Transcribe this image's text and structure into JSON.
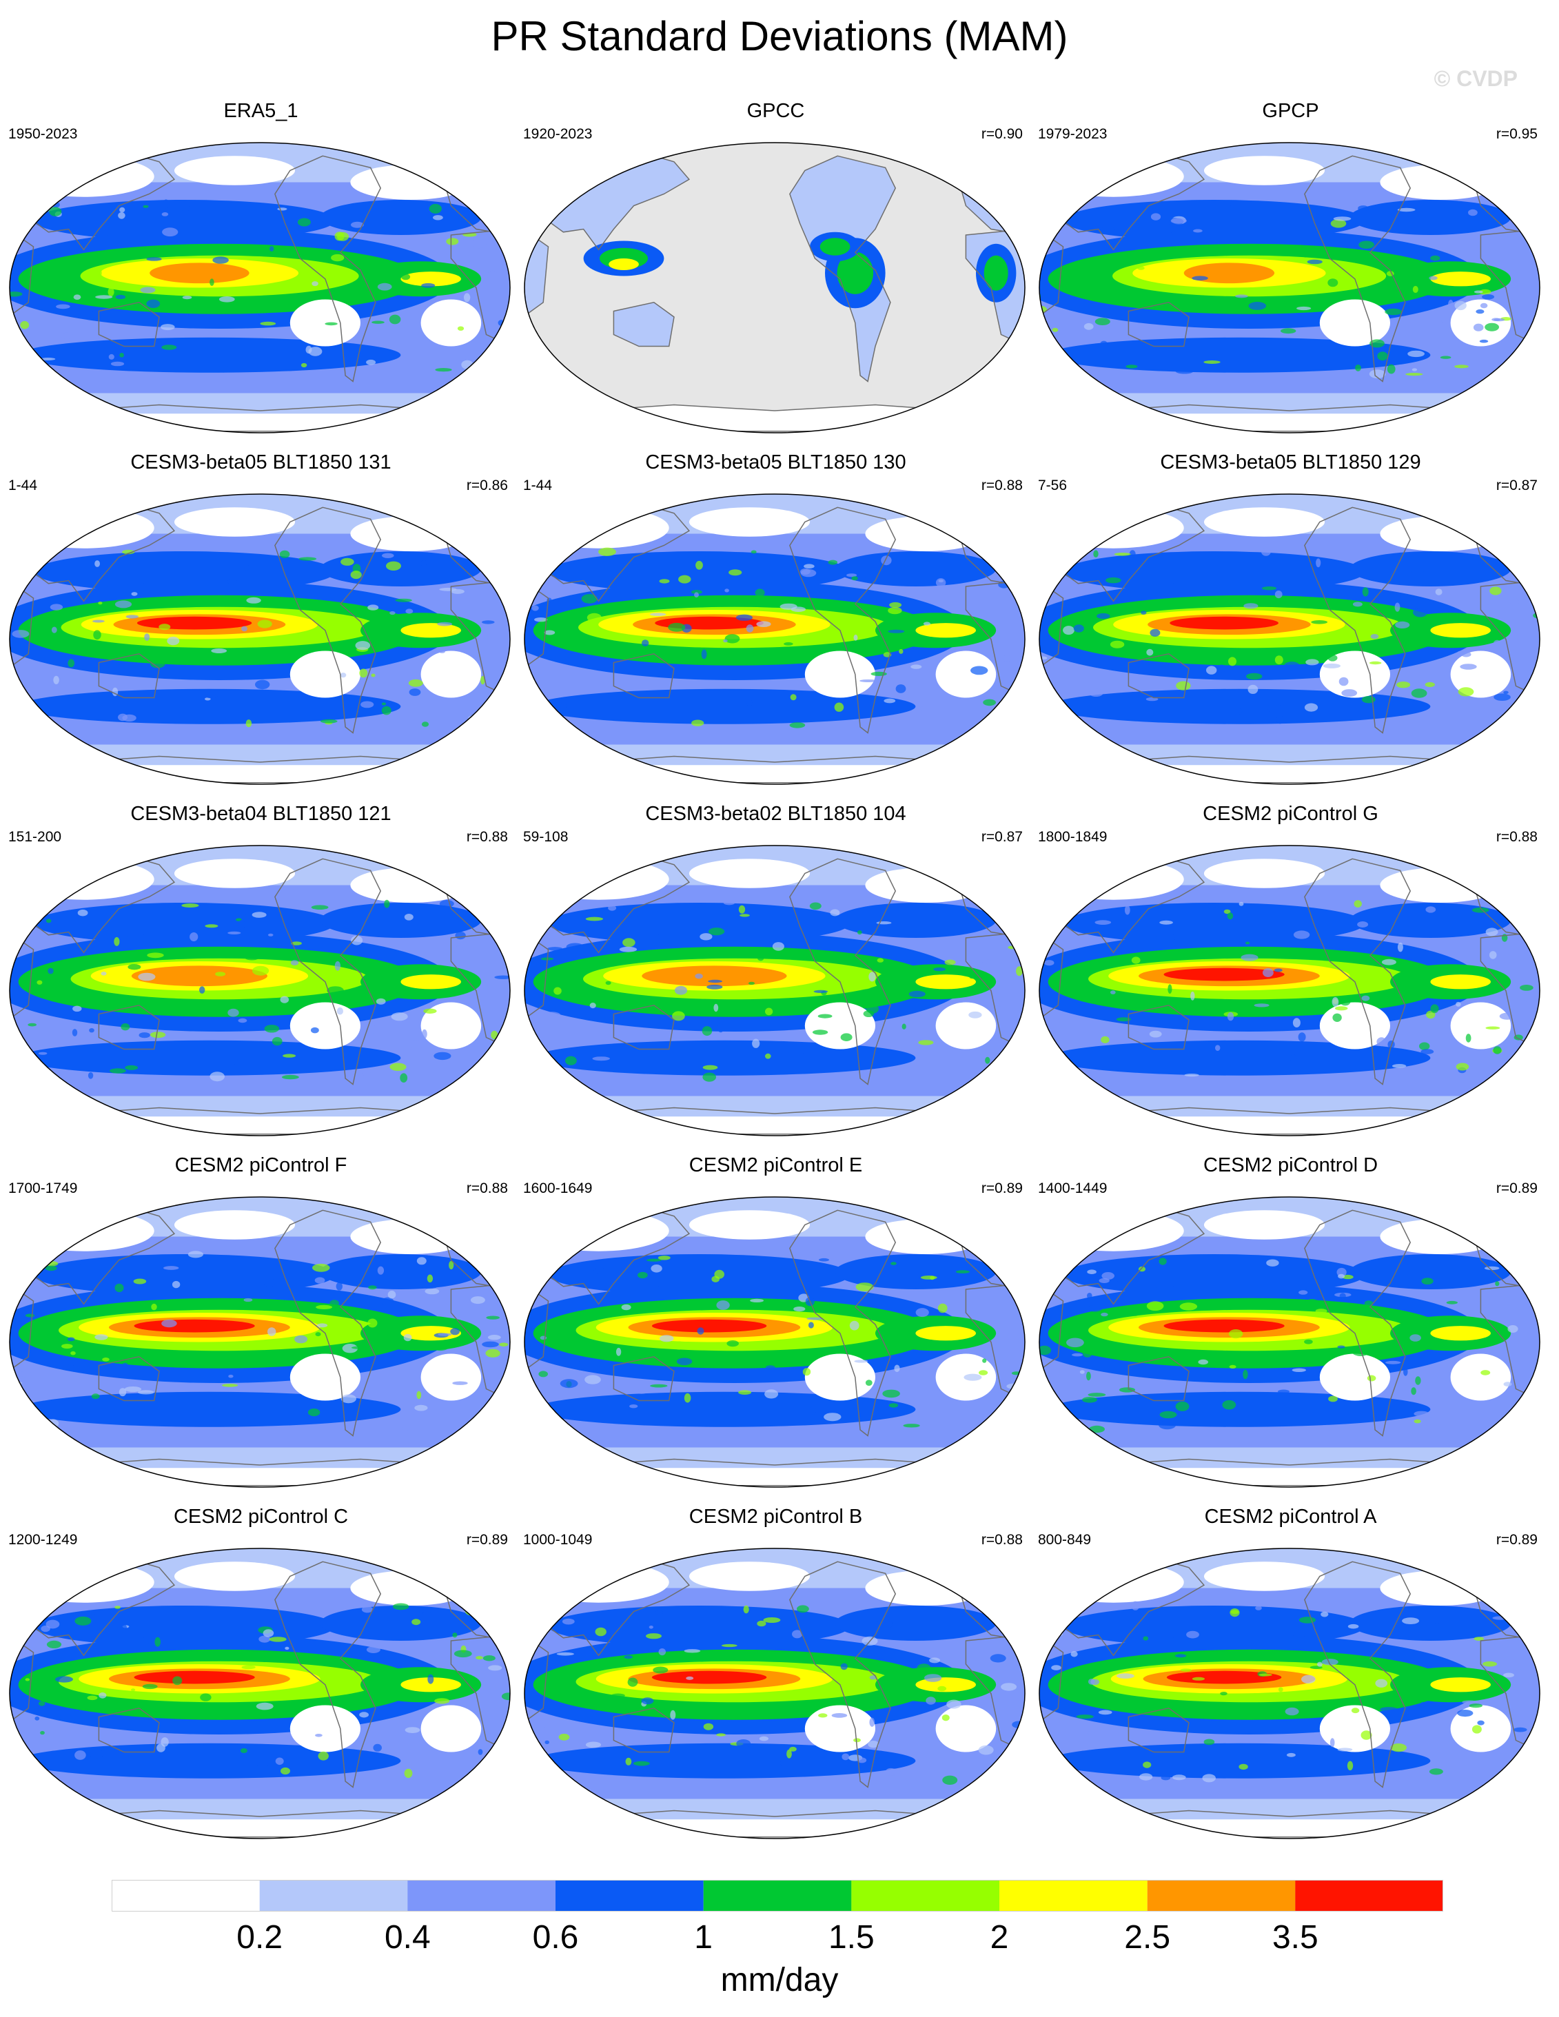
{
  "figure": {
    "title": "PR Standard Deviations (MAM)",
    "watermark": "© CVDP"
  },
  "panels": [
    {
      "title": "ERA5_1",
      "period": "1950-2023",
      "r": "",
      "kind": "obs",
      "intensity": 0.55
    },
    {
      "title": "GPCC",
      "period": "1920-2023",
      "r": "r=0.90",
      "kind": "land",
      "intensity": 0.5
    },
    {
      "title": "GPCP",
      "period": "1979-2023",
      "r": "r=0.95",
      "kind": "obs",
      "intensity": 0.5
    },
    {
      "title": "CESM3-beta05 BLT1850 131",
      "period": "1-44",
      "r": "r=0.86",
      "kind": "model",
      "intensity": 0.95
    },
    {
      "title": "CESM3-beta05 BLT1850 130",
      "period": "1-44",
      "r": "r=0.88",
      "kind": "model",
      "intensity": 0.9
    },
    {
      "title": "CESM3-beta05 BLT1850 129",
      "period": "7-56",
      "r": "r=0.87",
      "kind": "model",
      "intensity": 0.9
    },
    {
      "title": "CESM3-beta04 BLT1850 121",
      "period": "151-200",
      "r": "r=0.88",
      "kind": "model",
      "intensity": 0.75
    },
    {
      "title": "CESM3-beta02 BLT1850 104",
      "period": "59-108",
      "r": "r=0.87",
      "kind": "model",
      "intensity": 0.8
    },
    {
      "title": "CESM2 piControl G",
      "period": "1800-1849",
      "r": "r=0.88",
      "kind": "model",
      "intensity": 1.0
    },
    {
      "title": "CESM2 piControl F",
      "period": "1700-1749",
      "r": "r=0.88",
      "kind": "model",
      "intensity": 1.0
    },
    {
      "title": "CESM2 piControl E",
      "period": "1600-1649",
      "r": "r=0.89",
      "kind": "model",
      "intensity": 0.95
    },
    {
      "title": "CESM2 piControl D",
      "period": "1400-1449",
      "r": "r=0.89",
      "kind": "model",
      "intensity": 1.0
    },
    {
      "title": "CESM2 piControl C",
      "period": "1200-1249",
      "r": "r=0.89",
      "kind": "model",
      "intensity": 1.0
    },
    {
      "title": "CESM2 piControl B",
      "period": "1000-1049",
      "r": "r=0.88",
      "kind": "model",
      "intensity": 0.95
    },
    {
      "title": "CESM2 piControl A",
      "period": "800-849",
      "r": "r=0.89",
      "kind": "model",
      "intensity": 0.95
    }
  ],
  "colorbar": {
    "colors": [
      "#ffffff",
      "#b4c8fa",
      "#7d96fa",
      "#0a5af5",
      "#00c832",
      "#96ff00",
      "#ffff00",
      "#ff9600",
      "#ff1400"
    ],
    "tick_labels": [
      "0.2",
      "0.4",
      "0.6",
      "1",
      "1.5",
      "2",
      "2.5",
      "3.5"
    ],
    "units": "mm/day"
  },
  "map_style": {
    "land_mask_color": "#e6e6e6",
    "coastline_color": "#6e6e6e"
  }
}
